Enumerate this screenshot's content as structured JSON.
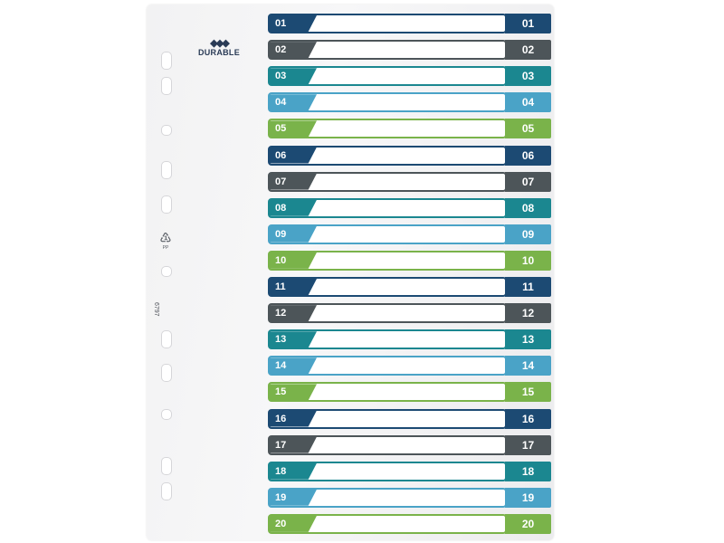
{
  "brand": {
    "name": "DURABLE",
    "mark": "◆◆◆"
  },
  "sheet": {
    "product_code": "6797",
    "recycle_symbol": "♳",
    "recycle_text": "PP"
  },
  "colors": {
    "navy": "#1c4a73",
    "gray": "#4d5559",
    "teal": "#1b8790",
    "blue": "#4aa3c7",
    "green": "#7ab34a"
  },
  "tabs": [
    {
      "label": "01",
      "color": "navy"
    },
    {
      "label": "02",
      "color": "gray"
    },
    {
      "label": "03",
      "color": "teal"
    },
    {
      "label": "04",
      "color": "blue"
    },
    {
      "label": "05",
      "color": "green"
    },
    {
      "label": "06",
      "color": "navy"
    },
    {
      "label": "07",
      "color": "gray"
    },
    {
      "label": "08",
      "color": "teal"
    },
    {
      "label": "09",
      "color": "blue"
    },
    {
      "label": "10",
      "color": "green"
    },
    {
      "label": "11",
      "color": "navy"
    },
    {
      "label": "12",
      "color": "gray"
    },
    {
      "label": "13",
      "color": "teal"
    },
    {
      "label": "14",
      "color": "blue"
    },
    {
      "label": "15",
      "color": "green"
    },
    {
      "label": "16",
      "color": "navy"
    },
    {
      "label": "17",
      "color": "gray"
    },
    {
      "label": "18",
      "color": "teal"
    },
    {
      "label": "19",
      "color": "blue"
    },
    {
      "label": "20",
      "color": "green"
    }
  ]
}
